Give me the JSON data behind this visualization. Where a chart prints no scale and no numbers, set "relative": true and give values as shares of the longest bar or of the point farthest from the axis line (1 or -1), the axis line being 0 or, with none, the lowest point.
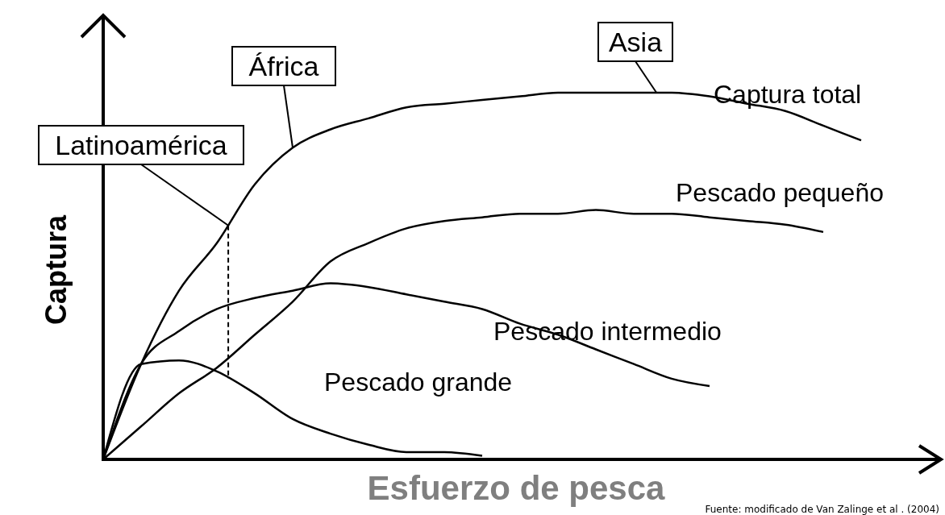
{
  "chart_data": {
    "type": "line",
    "relative": true,
    "xlabel": "Esfuerzo de pesca",
    "ylabel": "Captura",
    "marker": "none",
    "line_style": "solid",
    "categories": [
      null,
      null,
      null,
      null,
      null,
      null,
      null,
      null,
      null,
      null,
      null,
      null,
      null,
      null,
      null,
      null,
      null,
      null,
      null,
      null,
      null
    ],
    "series": [
      {
        "name": "Captura total",
        "color": "#000000",
        "values": [
          0,
          0.26,
          0.46,
          0.59,
          0.75,
          0.85,
          0.9,
          0.93,
          0.96,
          0.97,
          0.98,
          0.99,
          1,
          1,
          1,
          1,
          0.99,
          0.97,
          0.95,
          0.91,
          0.87
        ]
      },
      {
        "name": "Pescado pequeño",
        "color": "#000000",
        "values": [
          0,
          0.09,
          0.18,
          0.25,
          0.34,
          0.43,
          0.54,
          0.59,
          0.63,
          0.65,
          0.66,
          0.67,
          0.67,
          0.68,
          0.67,
          0.67,
          0.66,
          0.65,
          0.64,
          0.62,
          null
        ]
      },
      {
        "name": "Pescado intermedio",
        "color": "#000000",
        "values": [
          0,
          0.26,
          0.35,
          0.41,
          0.44,
          0.46,
          0.48,
          0.47,
          0.45,
          0.43,
          0.41,
          0.37,
          0.34,
          0.3,
          0.26,
          0.22,
          0.2,
          null,
          null,
          null,
          null
        ]
      },
      {
        "name": "Pescado grande",
        "color": "#000000",
        "values": [
          0,
          0.26,
          0.27,
          0.24,
          0.18,
          0.11,
          0.07,
          0.04,
          0.02,
          0.02,
          0.01,
          null,
          null,
          null,
          null,
          null,
          null,
          null,
          null,
          null,
          null
        ]
      }
    ],
    "annotations": [
      "Latinoamérica",
      "África",
      "Asia",
      "Fuente: modificado de Van Zalinge et al . (2004)"
    ]
  }
}
